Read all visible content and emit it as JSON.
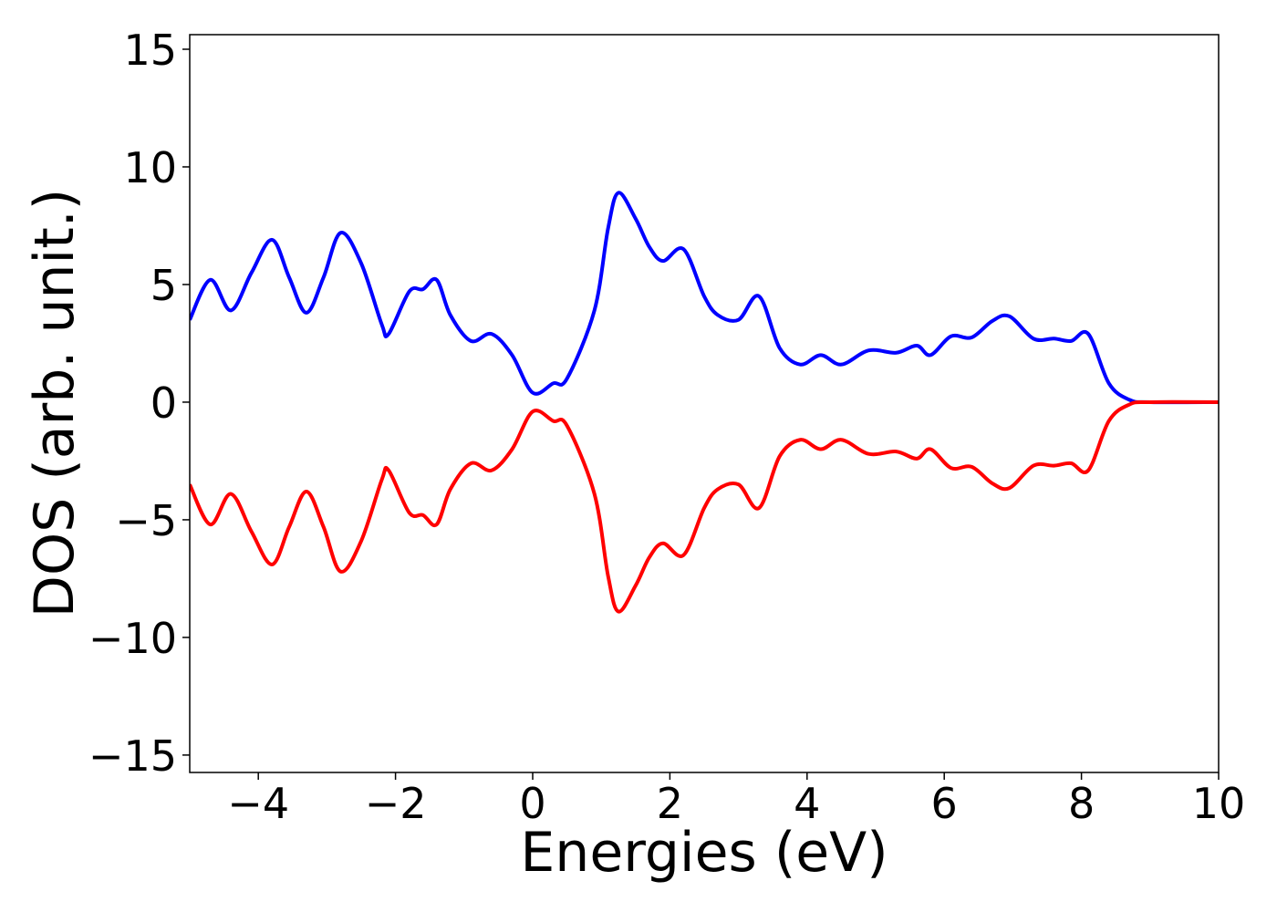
{
  "chart_data": {
    "type": "line",
    "xlabel": "Energies (eV)",
    "ylabel": "DOS (arb. unit.)",
    "x": [
      -5,
      -4.7,
      -4.4,
      -4.1,
      -3.8,
      -3.55,
      -3.3,
      -3.05,
      -2.8,
      -2.5,
      -2.2,
      -2.1,
      -1.8,
      -1.6,
      -1.4,
      -1.2,
      -0.9,
      -0.6,
      -0.3,
      0,
      0.3,
      0.5,
      0.9,
      1.1,
      1.25,
      1.5,
      1.7,
      1.9,
      2.2,
      2.5,
      2.7,
      3.0,
      3.3,
      3.6,
      3.9,
      4.2,
      4.5,
      4.9,
      5.3,
      5.6,
      5.8,
      6.1,
      6.4,
      6.7,
      6.95,
      7.3,
      7.6,
      7.85,
      8.1,
      8.4,
      8.7,
      9,
      10
    ],
    "series": [
      {
        "color": "#0000ff",
        "values": [
          3.5,
          5.2,
          3.9,
          5.5,
          6.9,
          5.3,
          3.8,
          5.3,
          7.2,
          5.9,
          3.3,
          2.9,
          4.7,
          4.8,
          5.2,
          3.7,
          2.6,
          2.9,
          2.0,
          0.4,
          0.8,
          1.0,
          3.9,
          7.4,
          8.9,
          7.8,
          6.6,
          6.0,
          6.5,
          4.5,
          3.7,
          3.5,
          4.5,
          2.3,
          1.6,
          2.0,
          1.6,
          2.2,
          2.1,
          2.4,
          2.0,
          2.8,
          2.75,
          3.45,
          3.65,
          2.7,
          2.7,
          2.6,
          2.9,
          0.8,
          0.1,
          0,
          0
        ]
      },
      {
        "color": "#ff0000",
        "values": [
          -3.5,
          -5.2,
          -3.9,
          -5.5,
          -6.9,
          -5.3,
          -3.8,
          -5.3,
          -7.2,
          -5.9,
          -3.3,
          -2.9,
          -4.7,
          -4.8,
          -5.2,
          -3.7,
          -2.6,
          -2.9,
          -2.0,
          -0.4,
          -0.8,
          -1.0,
          -3.9,
          -7.4,
          -8.9,
          -7.8,
          -6.6,
          -6.0,
          -6.5,
          -4.5,
          -3.7,
          -3.5,
          -4.5,
          -2.3,
          -1.6,
          -2.0,
          -1.6,
          -2.2,
          -2.1,
          -2.4,
          -2.0,
          -2.8,
          -2.75,
          -3.45,
          -3.65,
          -2.7,
          -2.7,
          -2.6,
          -2.9,
          -0.8,
          -0.1,
          0,
          0
        ]
      }
    ],
    "xlim": [
      -5,
      10
    ],
    "xticks": [
      {
        "value": -4,
        "label": "−4"
      },
      {
        "value": -2,
        "label": "−2"
      },
      0,
      2,
      4,
      6,
      8,
      10
    ],
    "ylim": [
      -15.74,
      15.62
    ],
    "yticks": [
      {
        "value": -15,
        "label": "−15"
      },
      {
        "value": -10,
        "label": "−10"
      },
      {
        "value": -5,
        "label": "−5"
      },
      0,
      5,
      10,
      15
    ]
  }
}
